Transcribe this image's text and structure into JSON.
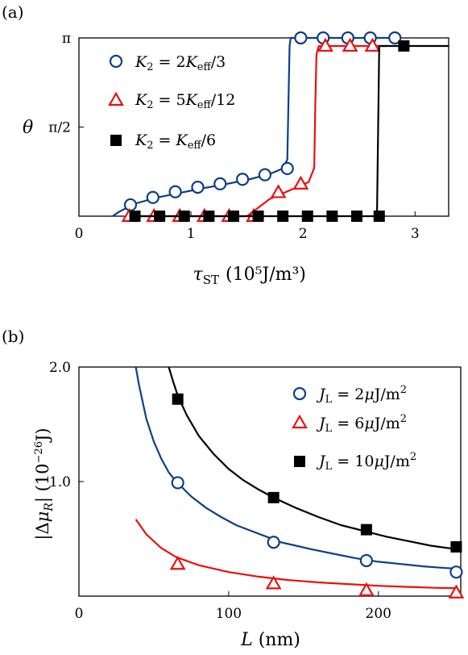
{
  "chart_data": [
    {
      "type": "line",
      "panel_label": "(a)",
      "ylabel": "θ",
      "xlabel": "τ_ST",
      "xlabel_unit": "(10⁵J/m³)",
      "xlim": [
        0,
        3.3
      ],
      "ylim": [
        0,
        3.1416
      ],
      "xticks": [
        {
          "v": 0,
          "label": "0"
        },
        {
          "v": 1,
          "label": "1"
        },
        {
          "v": 2,
          "label": "2"
        },
        {
          "v": 3,
          "label": "3"
        }
      ],
      "yticks": [
        {
          "v": 1.5708,
          "label": "π/2"
        },
        {
          "v": 3.1416,
          "label": "π"
        }
      ],
      "reference_line": {
        "y": 3.1416,
        "style": "dashed"
      },
      "legend_position": "top-left",
      "series": [
        {
          "name": "K₂ = 2K_eff/3",
          "color": "#0b3f86",
          "marker": "circle",
          "curve": [
            [
              0.3,
              0.0
            ],
            [
              0.36,
              0.08
            ],
            [
              0.5,
              0.22
            ],
            [
              0.7,
              0.33
            ],
            [
              0.9,
              0.41
            ],
            [
              1.1,
              0.49
            ],
            [
              1.3,
              0.56
            ],
            [
              1.5,
              0.64
            ],
            [
              1.7,
              0.74
            ],
            [
              1.82,
              0.84
            ],
            [
              1.86,
              1.0
            ],
            [
              1.87,
              2.0
            ],
            [
              1.88,
              3.0
            ],
            [
              1.89,
              3.1416
            ],
            [
              2.0,
              3.1416
            ],
            [
              2.85,
              3.1416
            ]
          ],
          "points": [
            [
              0.46,
              0.2
            ],
            [
              0.66,
              0.33
            ],
            [
              0.86,
              0.43
            ],
            [
              1.06,
              0.51
            ],
            [
              1.26,
              0.57
            ],
            [
              1.46,
              0.65
            ],
            [
              1.66,
              0.73
            ],
            [
              1.86,
              0.84
            ],
            [
              1.98,
              3.1416
            ],
            [
              2.18,
              3.1416
            ],
            [
              2.4,
              3.1416
            ],
            [
              2.6,
              3.1416
            ],
            [
              2.82,
              3.1416
            ]
          ]
        },
        {
          "name": "K₂ = 5K_eff/12",
          "color": "#e8110f",
          "marker": "triangle",
          "curve": [
            [
              0.45,
              0.0
            ],
            [
              1.5,
              0.0
            ],
            [
              1.58,
              0.12
            ],
            [
              1.7,
              0.3
            ],
            [
              1.9,
              0.47
            ],
            [
              2.05,
              0.6
            ],
            [
              2.1,
              0.85
            ],
            [
              2.11,
              2.0
            ],
            [
              2.12,
              2.85
            ],
            [
              2.14,
              3.0
            ],
            [
              2.2,
              3.0
            ],
            [
              2.75,
              3.0
            ]
          ],
          "points": [
            [
              0.45,
              0.0
            ],
            [
              0.67,
              0.0
            ],
            [
              0.9,
              0.0
            ],
            [
              1.12,
              0.0
            ],
            [
              1.34,
              0.0
            ],
            [
              1.56,
              0.0
            ],
            [
              1.78,
              0.42
            ],
            [
              1.98,
              0.57
            ],
            [
              2.2,
              3.0
            ],
            [
              2.42,
              3.0
            ],
            [
              2.62,
              3.0
            ]
          ]
        },
        {
          "name": "K₂ = K_eff/6",
          "color": "#000000",
          "marker": "square",
          "curve": [
            [
              0.45,
              0.0
            ],
            [
              2.66,
              0.0
            ],
            [
              2.67,
              1.5
            ],
            [
              2.68,
              3.0
            ],
            [
              2.72,
              3.0
            ],
            [
              3.3,
              3.0
            ]
          ],
          "points": [
            [
              0.5,
              0.0
            ],
            [
              0.72,
              0.0
            ],
            [
              0.94,
              0.0
            ],
            [
              1.16,
              0.0
            ],
            [
              1.38,
              0.0
            ],
            [
              1.6,
              0.0
            ],
            [
              1.82,
              0.0
            ],
            [
              2.04,
              0.0
            ],
            [
              2.26,
              0.0
            ],
            [
              2.48,
              0.0
            ],
            [
              2.68,
              0.0
            ],
            [
              2.9,
              3.0
            ]
          ]
        }
      ]
    },
    {
      "type": "line",
      "panel_label": "(b)",
      "ylabel": "|Δμ_R| (10⁻²⁶J)",
      "xlabel": "L (nm)",
      "xlim": [
        0,
        255
      ],
      "ylim": [
        0,
        2.0
      ],
      "xticks": [
        {
          "v": 0,
          "label": "0"
        },
        {
          "v": 100,
          "label": "100"
        },
        {
          "v": 200,
          "label": "200"
        }
      ],
      "yticks": [
        {
          "v": 1.0,
          "label": "1.0"
        },
        {
          "v": 2.0,
          "label": "2.0"
        }
      ],
      "legend_position": "top-right",
      "series": [
        {
          "name": "J_L = 2μJ/m²",
          "color": "#0b3f86",
          "marker": "circle",
          "curve": [
            [
              38,
              2.0
            ],
            [
              40,
              1.85
            ],
            [
              45,
              1.55
            ],
            [
              50,
              1.35
            ],
            [
              55,
              1.2
            ],
            [
              60,
              1.08
            ],
            [
              65,
              1.0
            ],
            [
              75,
              0.87
            ],
            [
              85,
              0.77
            ],
            [
              95,
              0.69
            ],
            [
              105,
              0.62
            ],
            [
              115,
              0.57
            ],
            [
              125,
              0.52
            ],
            [
              135,
              0.47
            ],
            [
              145,
              0.44
            ],
            [
              155,
              0.41
            ],
            [
              170,
              0.37
            ],
            [
              185,
              0.33
            ],
            [
              200,
              0.3
            ],
            [
              215,
              0.28
            ],
            [
              230,
              0.26
            ],
            [
              245,
              0.245
            ],
            [
              252,
              0.24
            ]
          ],
          "points": [
            [
              66,
              0.99
            ],
            [
              130,
              0.47
            ],
            [
              192,
              0.31
            ],
            [
              252,
              0.21
            ]
          ]
        },
        {
          "name": "J_L = 6μJ/m²",
          "color": "#e8110f",
          "marker": "triangle",
          "curve": [
            [
              38,
              0.67
            ],
            [
              45,
              0.54
            ],
            [
              55,
              0.42
            ],
            [
              65,
              0.34
            ],
            [
              80,
              0.27
            ],
            [
              100,
              0.21
            ],
            [
              120,
              0.17
            ],
            [
              140,
              0.14
            ],
            [
              160,
              0.12
            ],
            [
              180,
              0.105
            ],
            [
              200,
              0.09
            ],
            [
              220,
              0.08
            ],
            [
              240,
              0.072
            ],
            [
              252,
              0.07
            ]
          ],
          "points": [
            [
              66,
              0.28
            ],
            [
              130,
              0.11
            ],
            [
              192,
              0.05
            ],
            [
              252,
              0.03
            ]
          ]
        },
        {
          "name": "J_L = 10μJ/m²",
          "color": "#000000",
          "marker": "square",
          "curve": [
            [
              60,
              2.0
            ],
            [
              63,
              1.87
            ],
            [
              66,
              1.75
            ],
            [
              72,
              1.58
            ],
            [
              80,
              1.4
            ],
            [
              90,
              1.24
            ],
            [
              100,
              1.11
            ],
            [
              110,
              1.01
            ],
            [
              120,
              0.93
            ],
            [
              130,
              0.86
            ],
            [
              145,
              0.77
            ],
            [
              160,
              0.69
            ],
            [
              175,
              0.62
            ],
            [
              190,
              0.57
            ],
            [
              205,
              0.52
            ],
            [
              220,
              0.48
            ],
            [
              235,
              0.44
            ],
            [
              252,
              0.41
            ]
          ],
          "points": [
            [
              66,
              1.72
            ],
            [
              130,
              0.86
            ],
            [
              192,
              0.58
            ],
            [
              252,
              0.43
            ]
          ]
        }
      ]
    }
  ]
}
